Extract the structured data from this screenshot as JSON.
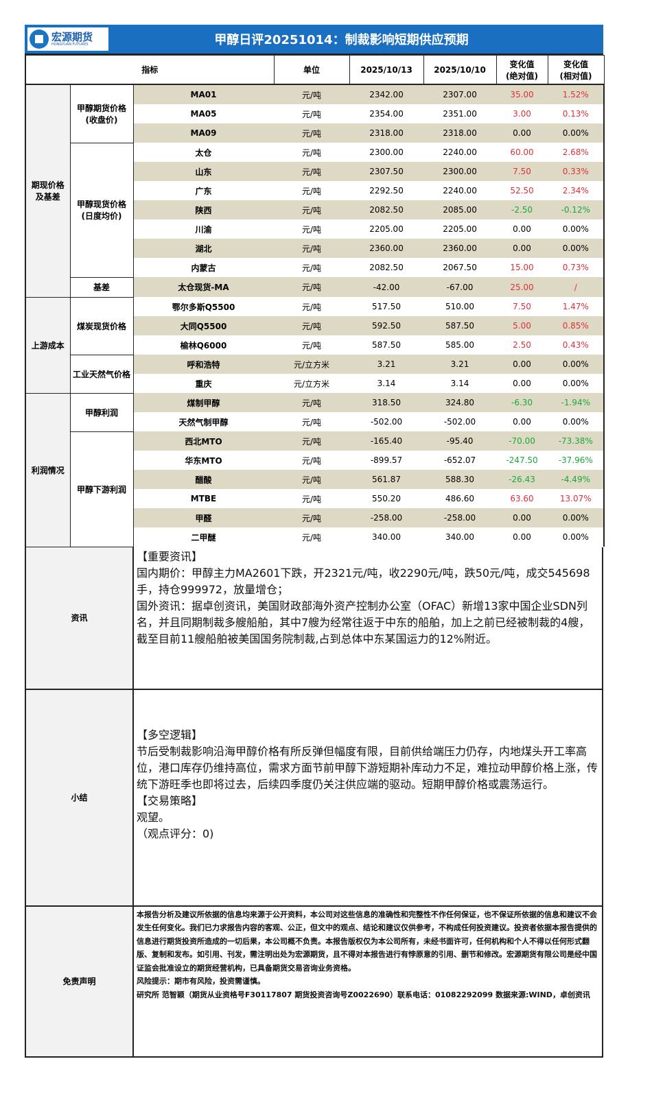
{
  "header": {
    "logo_cn": "宏源期货",
    "logo_en": "HONGYUAN FUTURES",
    "title": "甲醇日评20251014：制裁影响短期供应预期"
  },
  "columns": {
    "indicator": "指标",
    "unit": "单位",
    "date1": "2025/10/13",
    "date2": "2025/10/10",
    "abs": "变化值\n(绝对值)",
    "rel": "变化值\n(相对值)"
  },
  "colors": {
    "header_bg": "#1a6fc0",
    "tan_row": "#ddd9c4",
    "up": "#e0303a",
    "down": "#1aa83a"
  },
  "groups": [
    {
      "label": "期现价格\n及基差",
      "subs": [
        {
          "label": "甲醇期货价格\n(收盘价)",
          "rows": [
            [
              "MA01",
              "元/吨",
              "2342.00",
              "2307.00",
              "35.00",
              "1.52%",
              "up"
            ],
            [
              "MA05",
              "元/吨",
              "2354.00",
              "2351.00",
              "3.00",
              "0.13%",
              "up"
            ],
            [
              "MA09",
              "元/吨",
              "2318.00",
              "2318.00",
              "0.00",
              "0.00%",
              ""
            ]
          ]
        },
        {
          "label": "甲醇现货价格\n(日度均价)",
          "rows": [
            [
              "太仓",
              "元/吨",
              "2300.00",
              "2240.00",
              "60.00",
              "2.68%",
              "up"
            ],
            [
              "山东",
              "元/吨",
              "2307.50",
              "2300.00",
              "7.50",
              "0.33%",
              "up"
            ],
            [
              "广东",
              "元/吨",
              "2292.50",
              "2240.00",
              "52.50",
              "2.34%",
              "up"
            ],
            [
              "陕西",
              "元/吨",
              "2082.50",
              "2085.00",
              "-2.50",
              "-0.12%",
              "down"
            ],
            [
              "川渝",
              "元/吨",
              "2205.00",
              "2205.00",
              "0.00",
              "0.00%",
              ""
            ],
            [
              "湖北",
              "元/吨",
              "2360.00",
              "2360.00",
              "0.00",
              "0.00%",
              ""
            ],
            [
              "内蒙古",
              "元/吨",
              "2082.50",
              "2067.50",
              "15.00",
              "0.73%",
              "up"
            ]
          ]
        },
        {
          "label": "基差",
          "rows": [
            [
              "太仓现货-MA",
              "元/吨",
              "-42.00",
              "-67.00",
              "25.00",
              "/",
              "up"
            ]
          ]
        }
      ]
    },
    {
      "label": "上游成本",
      "subs": [
        {
          "label": "煤炭现货价格",
          "rows": [
            [
              "鄂尔多斯Q5500",
              "元/吨",
              "517.50",
              "510.00",
              "7.50",
              "1.47%",
              "up"
            ],
            [
              "大同Q5500",
              "元/吨",
              "592.50",
              "587.50",
              "5.00",
              "0.85%",
              "up"
            ],
            [
              "榆林Q6000",
              "元/吨",
              "587.50",
              "585.00",
              "2.50",
              "0.43%",
              "up"
            ]
          ]
        },
        {
          "label": "工业天然气价格",
          "rows": [
            [
              "呼和浩特",
              "元/立方米",
              "3.21",
              "3.21",
              "0.00",
              "0.00%",
              ""
            ],
            [
              "重庆",
              "元/立方米",
              "3.14",
              "3.14",
              "0.00",
              "0.00%",
              ""
            ]
          ]
        }
      ]
    },
    {
      "label": "利润情况",
      "subs": [
        {
          "label": "甲醇利润",
          "rows": [
            [
              "煤制甲醇",
              "元/吨",
              "318.50",
              "324.80",
              "-6.30",
              "-1.94%",
              "down"
            ],
            [
              "天然气制甲醇",
              "元/吨",
              "-502.00",
              "-502.00",
              "0.00",
              "0.00%",
              ""
            ]
          ]
        },
        {
          "label": "甲醇下游利润",
          "rows": [
            [
              "西北MTO",
              "元/吨",
              "-165.40",
              "-95.40",
              "-70.00",
              "-73.38%",
              "down"
            ],
            [
              "华东MTO",
              "元/吨",
              "-899.57",
              "-652.07",
              "-247.50",
              "-37.96%",
              "down"
            ],
            [
              "醋酸",
              "元/吨",
              "561.87",
              "588.30",
              "-26.43",
              "-4.49%",
              "down"
            ],
            [
              "MTBE",
              "元/吨",
              "550.20",
              "486.60",
              "63.60",
              "13.07%",
              "up"
            ],
            [
              "甲醛",
              "元/吨",
              "-258.00",
              "-258.00",
              "0.00",
              "0.00%",
              ""
            ],
            [
              "二甲醚",
              "元/吨",
              "340.00",
              "340.00",
              "0.00",
              "0.00%",
              ""
            ]
          ]
        }
      ]
    }
  ],
  "news": {
    "label": "资讯",
    "lines": [
      "【重要资讯】",
      "国内期价：甲醇主力MA2601下跌，开2321元/吨，收2290元/吨，跌50元/吨，成交545698手，持仓999972，放量增仓；",
      "国外资讯：据卓创资讯，美国财政部海外资产控制办公室（OFAC）新增13家中国企业SDN列名，并且同期制裁多艘船舶，其中7艘为经常往返于中东的船舶，加上之前已经被制裁的4艘，截至目前11艘船舶被美国国务院制裁,占到总体中东某国运力的12%附近。"
    ]
  },
  "summary": {
    "label": "小结",
    "lines": [
      "【多空逻辑】",
      "节后受制裁影响沿海甲醇价格有所反弹但幅度有限，目前供给端压力仍存，内地煤头开工率高位，港口库存仍维持高位，需求方面节前甲醇下游短期补库动力不足，难拉动甲醇价格上涨，传统下游旺季也即将过去，后续四季度仍关注供应端的驱动。短期甲醇价格或震荡运行。",
      "【交易策略】",
      "观望。",
      "（观点评分：0)"
    ]
  },
  "disclaimer": {
    "label": "免责声明",
    "lines": [
      "本报告分析及建议所依据的信息均来源于公开资料，本公司对这些信息的准确性和完整性不作任何保证，也不保证所依据的信息和建议不会发生任何变化。我们已力求报告内容的客观、公正，但文中的观点、结论和建议仅供参考，不构成任何投资建议。投资者依据本报告提供的信息进行期货投资所造成的一切后果，本公司概不负责。本报告版权仅为本公司所有，未经书面许可，任何机构和个人不得以任何形式翻版、复制和发布。如引用、刊发，需注明出处为宏源期货，且不得对本报告进行有悖原意的引用、删节和修改。宏源期货有限公司是经中国证监会批准设立的期货经营机构，已具备期货交易咨询业务资格。",
      "风险提示：期市有风险，投资需谨慎。",
      "研究所 范智颖（期货从业资格号F30117807 期货投资咨询号Z0022690）联系电话：01082292099  数据来源:WIND，卓创资讯"
    ]
  }
}
